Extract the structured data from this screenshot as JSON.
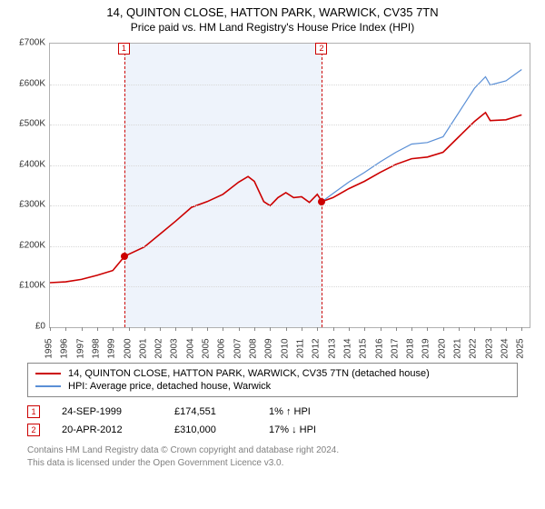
{
  "title": "14, QUINTON CLOSE, HATTON PARK, WARWICK, CV35 7TN",
  "subtitle": "Price paid vs. HM Land Registry's House Price Index (HPI)",
  "chart": {
    "type": "line",
    "background_color": "#ffffff",
    "grid_color": "#d8d8d8",
    "axis_color": "#b0b0b0",
    "shaded_band": {
      "start_year": 1999.73,
      "end_year": 2012.3,
      "color": "#eef3fb"
    },
    "y": {
      "min": 0,
      "max": 700000,
      "step": 100000,
      "tick_labels": [
        "£0",
        "£100K",
        "£200K",
        "£300K",
        "£400K",
        "£500K",
        "£600K",
        "£700K"
      ],
      "label_fontsize": 10
    },
    "x": {
      "min": 1995,
      "max": 2025.5,
      "step": 1,
      "tick_labels": [
        "1995",
        "1996",
        "1997",
        "1998",
        "1999",
        "2000",
        "2001",
        "2002",
        "2003",
        "2004",
        "2005",
        "2006",
        "2007",
        "2008",
        "2009",
        "2010",
        "2011",
        "2012",
        "2013",
        "2014",
        "2015",
        "2016",
        "2017",
        "2018",
        "2019",
        "2020",
        "2021",
        "2022",
        "2023",
        "2024",
        "2025"
      ],
      "label_fontsize": 10
    },
    "series": [
      {
        "name": "14, QUINTON CLOSE, HATTON PARK, WARWICK, CV35 7TN (detached house)",
        "color": "#cc0000",
        "line_width": 1.6,
        "points": [
          [
            1995,
            110000
          ],
          [
            1996,
            112000
          ],
          [
            1997,
            118000
          ],
          [
            1998,
            128000
          ],
          [
            1999,
            140000
          ],
          [
            1999.73,
            174551
          ],
          [
            2000,
            180000
          ],
          [
            2001,
            198000
          ],
          [
            2002,
            230000
          ],
          [
            2003,
            262000
          ],
          [
            2004,
            296000
          ],
          [
            2005,
            310000
          ],
          [
            2006,
            328000
          ],
          [
            2007,
            358000
          ],
          [
            2007.6,
            372000
          ],
          [
            2008,
            360000
          ],
          [
            2008.6,
            310000
          ],
          [
            2009,
            300000
          ],
          [
            2009.5,
            320000
          ],
          [
            2010,
            332000
          ],
          [
            2010.5,
            320000
          ],
          [
            2011,
            322000
          ],
          [
            2011.5,
            308000
          ],
          [
            2012,
            328000
          ],
          [
            2012.3,
            310000
          ],
          [
            2013,
            320000
          ],
          [
            2014,
            342000
          ],
          [
            2015,
            360000
          ],
          [
            2016,
            382000
          ],
          [
            2017,
            402000
          ],
          [
            2018,
            416000
          ],
          [
            2019,
            420000
          ],
          [
            2020,
            432000
          ],
          [
            2021,
            470000
          ],
          [
            2022,
            508000
          ],
          [
            2022.7,
            530000
          ],
          [
            2023,
            510000
          ],
          [
            2024,
            512000
          ],
          [
            2025,
            524000
          ]
        ]
      },
      {
        "name": "HPI: Average price, detached house, Warwick",
        "color": "#5a8fd6",
        "line_width": 1.2,
        "points": [
          [
            2012.3,
            310000
          ],
          [
            2013,
            330000
          ],
          [
            2014,
            358000
          ],
          [
            2015,
            382000
          ],
          [
            2016,
            408000
          ],
          [
            2017,
            432000
          ],
          [
            2018,
            452000
          ],
          [
            2019,
            456000
          ],
          [
            2020,
            470000
          ],
          [
            2021,
            530000
          ],
          [
            2022,
            590000
          ],
          [
            2022.7,
            618000
          ],
          [
            2023,
            598000
          ],
          [
            2024,
            608000
          ],
          [
            2025,
            636000
          ]
        ]
      }
    ],
    "markers": [
      {
        "id": "1",
        "year": 1999.73,
        "price": 174551,
        "color": "#cc0000"
      },
      {
        "id": "2",
        "year": 2012.3,
        "price": 310000,
        "color": "#cc0000"
      }
    ]
  },
  "legend": {
    "items": [
      {
        "label": "14, QUINTON CLOSE, HATTON PARK, WARWICK, CV35 7TN (detached house)",
        "color": "#cc0000"
      },
      {
        "label": "HPI: Average price, detached house, Warwick",
        "color": "#5a8fd6"
      }
    ]
  },
  "events": [
    {
      "id": "1",
      "color": "#cc0000",
      "date": "24-SEP-1999",
      "price": "£174,551",
      "diff": "1% ↑ HPI"
    },
    {
      "id": "2",
      "color": "#cc0000",
      "date": "20-APR-2012",
      "price": "£310,000",
      "diff": "17% ↓ HPI"
    }
  ],
  "footer": {
    "line1": "Contains HM Land Registry data © Crown copyright and database right 2024.",
    "line2": "This data is licensed under the Open Government Licence v3.0."
  }
}
